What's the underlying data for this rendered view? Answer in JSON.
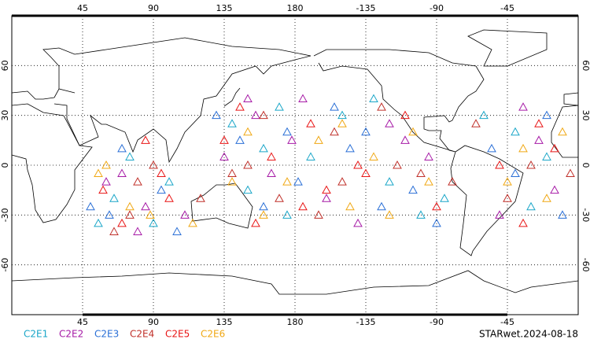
{
  "map": {
    "type": "scatter",
    "xticks": [
      45,
      90,
      135,
      180,
      -135,
      -90,
      -45
    ],
    "yticks": [
      60,
      30,
      0,
      -30,
      -60
    ],
    "xlim": [
      0,
      360
    ],
    "ylim": [
      -90,
      90
    ],
    "grid": true,
    "credit": "STARwet.2024-08-18",
    "series": [
      {
        "name": "C2E1",
        "color": "#1aa6c8",
        "points": [
          [
            65,
            -20
          ],
          [
            160,
            10
          ],
          [
            -150,
            30
          ],
          [
            -30,
            -25
          ],
          [
            90,
            -35
          ],
          [
            140,
            25
          ],
          [
            -120,
            -10
          ],
          [
            -40,
            20
          ],
          [
            75,
            5
          ],
          [
            175,
            -30
          ],
          [
            -170,
            5
          ],
          [
            -100,
            -30
          ],
          [
            -20,
            5
          ],
          [
            55,
            -35
          ],
          [
            150,
            -15
          ],
          [
            -130,
            40
          ],
          [
            -60,
            30
          ],
          [
            100,
            -10
          ],
          [
            170,
            35
          ],
          [
            -85,
            -20
          ]
        ]
      },
      {
        "name": "C2E2",
        "color": "#a61aa6",
        "points": [
          [
            70,
            -5
          ],
          [
            155,
            30
          ],
          [
            -160,
            -20
          ],
          [
            -25,
            15
          ],
          [
            85,
            -25
          ],
          [
            135,
            5
          ],
          [
            -110,
            15
          ],
          [
            -50,
            -30
          ],
          [
            60,
            -10
          ],
          [
            178,
            15
          ],
          [
            -140,
            -35
          ],
          [
            -95,
            5
          ],
          [
            -15,
            -15
          ],
          [
            80,
            -40
          ],
          [
            165,
            -5
          ],
          [
            -175,
            40
          ],
          [
            -35,
            35
          ],
          [
            110,
            -30
          ],
          [
            150,
            40
          ],
          [
            -120,
            25
          ]
        ]
      },
      {
        "name": "C2E3",
        "color": "#2a6fd6",
        "points": [
          [
            62,
            -30
          ],
          [
            145,
            15
          ],
          [
            -145,
            10
          ],
          [
            -40,
            -5
          ],
          [
            95,
            -15
          ],
          [
            160,
            -25
          ],
          [
            -125,
            -25
          ],
          [
            -20,
            30
          ],
          [
            70,
            10
          ],
          [
            -178,
            -10
          ],
          [
            -155,
            35
          ],
          [
            -105,
            -15
          ],
          [
            -10,
            -30
          ],
          [
            50,
            -25
          ],
          [
            175,
            20
          ],
          [
            -135,
            20
          ],
          [
            -55,
            10
          ],
          [
            105,
            -40
          ],
          [
            130,
            30
          ],
          [
            -90,
            -35
          ]
        ]
      },
      {
        "name": "C2E4",
        "color": "#c0302a",
        "points": [
          [
            80,
            -10
          ],
          [
            150,
            0
          ],
          [
            -155,
            20
          ],
          [
            -30,
            0
          ],
          [
            65,
            -40
          ],
          [
            170,
            -20
          ],
          [
            -115,
            0
          ],
          [
            -45,
            -20
          ],
          [
            90,
            0
          ],
          [
            -165,
            -30
          ],
          [
            -125,
            35
          ],
          [
            -100,
            -5
          ],
          [
            -5,
            -5
          ],
          [
            75,
            -30
          ],
          [
            140,
            -5
          ],
          [
            -150,
            -10
          ],
          [
            -65,
            25
          ],
          [
            120,
            -20
          ],
          [
            160,
            30
          ],
          [
            -80,
            -10
          ]
        ]
      },
      {
        "name": "C2E5",
        "color": "#e81515",
        "points": [
          [
            58,
            -15
          ],
          [
            165,
            5
          ],
          [
            -135,
            -5
          ],
          [
            -35,
            -35
          ],
          [
            100,
            -20
          ],
          [
            145,
            35
          ],
          [
            -170,
            25
          ],
          [
            -25,
            25
          ],
          [
            85,
            15
          ],
          [
            -160,
            -15
          ],
          [
            -110,
            30
          ],
          [
            -90,
            -25
          ],
          [
            -15,
            10
          ],
          [
            70,
            -35
          ],
          [
            155,
            -35
          ],
          [
            -140,
            0
          ],
          [
            -50,
            0
          ],
          [
            95,
            -5
          ],
          [
            135,
            15
          ],
          [
            -175,
            -25
          ]
        ]
      },
      {
        "name": "C2E6",
        "color": "#f0a814",
        "points": [
          [
            75,
            -25
          ],
          [
            140,
            -10
          ],
          [
            -165,
            15
          ],
          [
            -20,
            -20
          ],
          [
            60,
            0
          ],
          [
            175,
            -10
          ],
          [
            -130,
            5
          ],
          [
            -35,
            10
          ],
          [
            88,
            -30
          ],
          [
            -150,
            25
          ],
          [
            -105,
            20
          ],
          [
            -95,
            -10
          ],
          [
            -10,
            20
          ],
          [
            55,
            -5
          ],
          [
            160,
            -30
          ],
          [
            -120,
            -30
          ],
          [
            -45,
            -10
          ],
          [
            115,
            -35
          ],
          [
            150,
            20
          ],
          [
            -145,
            -25
          ]
        ]
      }
    ]
  }
}
